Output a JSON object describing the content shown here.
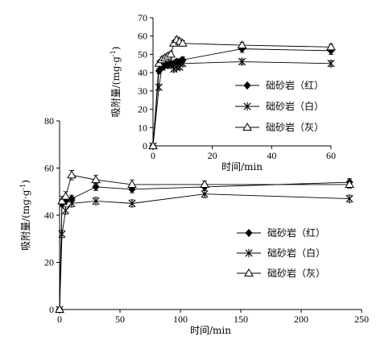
{
  "chart_data": [
    {
      "id": "main",
      "type": "line",
      "xlabel": "时间/min",
      "ylabel": "吸附量/(mg·g",
      "ylabel_sup": "-1",
      "ylabel_close": ")",
      "xlim": [
        0,
        250
      ],
      "ylim": [
        0,
        80
      ],
      "xticks": [
        0,
        50,
        100,
        150,
        200,
        250
      ],
      "yticks": [
        0,
        20,
        40,
        60,
        80
      ],
      "grid": false,
      "legend_position": "bottom-right",
      "series": [
        {
          "name": "础砂岩（红）",
          "marker": "diamond",
          "x": [
            0,
            2,
            5,
            10,
            30,
            60,
            120,
            240
          ],
          "y": [
            0,
            45,
            46,
            47,
            52,
            51,
            52,
            54
          ],
          "err": [
            0,
            1.5,
            1.5,
            1.5,
            1.5,
            1.5,
            1.5,
            1.5
          ]
        },
        {
          "name": "础砂岩（白）",
          "marker": "asterisk",
          "x": [
            0,
            2,
            5,
            10,
            30,
            60,
            120,
            240
          ],
          "y": [
            0,
            32,
            42,
            45,
            46,
            45,
            49,
            47
          ],
          "err": [
            0,
            1.5,
            1.5,
            1.5,
            1.5,
            1.5,
            1.5,
            1.5
          ]
        },
        {
          "name": "础砂岩（灰）",
          "marker": "triangle",
          "x": [
            0,
            2,
            5,
            10,
            30,
            60,
            120,
            240
          ],
          "y": [
            0,
            46,
            48,
            57,
            55,
            53,
            53,
            53
          ],
          "err": [
            0,
            2,
            2,
            2,
            2,
            2,
            1.5,
            1.5
          ]
        }
      ]
    },
    {
      "id": "inset",
      "type": "line",
      "xlabel": "时间/min",
      "ylabel": "吸附量/(mg·g",
      "ylabel_sup": "-1",
      "ylabel_close": ")",
      "xlim": [
        0,
        60
      ],
      "ylim": [
        0,
        70
      ],
      "xticks": [
        0,
        20,
        40,
        60
      ],
      "yticks": [
        0,
        10,
        20,
        30,
        40,
        50,
        60,
        70
      ],
      "grid": false,
      "legend_position": "bottom-right",
      "series": [
        {
          "name": "础砂岩（红）",
          "marker": "diamond",
          "x": [
            0,
            2,
            3,
            4,
            5,
            6,
            7,
            8,
            9,
            10,
            30,
            60
          ],
          "y": [
            0,
            41,
            43,
            44,
            44,
            45,
            45,
            46,
            46,
            47,
            53,
            52
          ],
          "err": [
            0,
            1.5,
            1.5,
            1.5,
            1.5,
            1.5,
            1.5,
            1.5,
            1.5,
            1.5,
            2,
            2
          ]
        },
        {
          "name": "础砂岩（白）",
          "marker": "asterisk",
          "x": [
            0,
            2,
            3,
            4,
            5,
            6,
            7,
            8,
            9,
            10,
            30,
            60
          ],
          "y": [
            0,
            32,
            43,
            44,
            45,
            44,
            42,
            43,
            43,
            45,
            46,
            45
          ],
          "err": [
            0,
            1.5,
            1.5,
            1.5,
            1.5,
            1.5,
            1.5,
            1.5,
            1.5,
            1.5,
            1.5,
            1.5
          ]
        },
        {
          "name": "础砂岩（灰）",
          "marker": "triangle",
          "x": [
            0,
            2,
            3,
            4,
            5,
            6,
            7,
            8,
            9,
            10,
            30,
            60
          ],
          "y": [
            0,
            45,
            47,
            48,
            49,
            50,
            56,
            58,
            57,
            56,
            55,
            54
          ],
          "err": [
            0,
            1.5,
            1.5,
            1.5,
            1.5,
            1.5,
            1.5,
            1.5,
            1.5,
            1.5,
            1.5,
            1.5
          ]
        }
      ]
    }
  ]
}
